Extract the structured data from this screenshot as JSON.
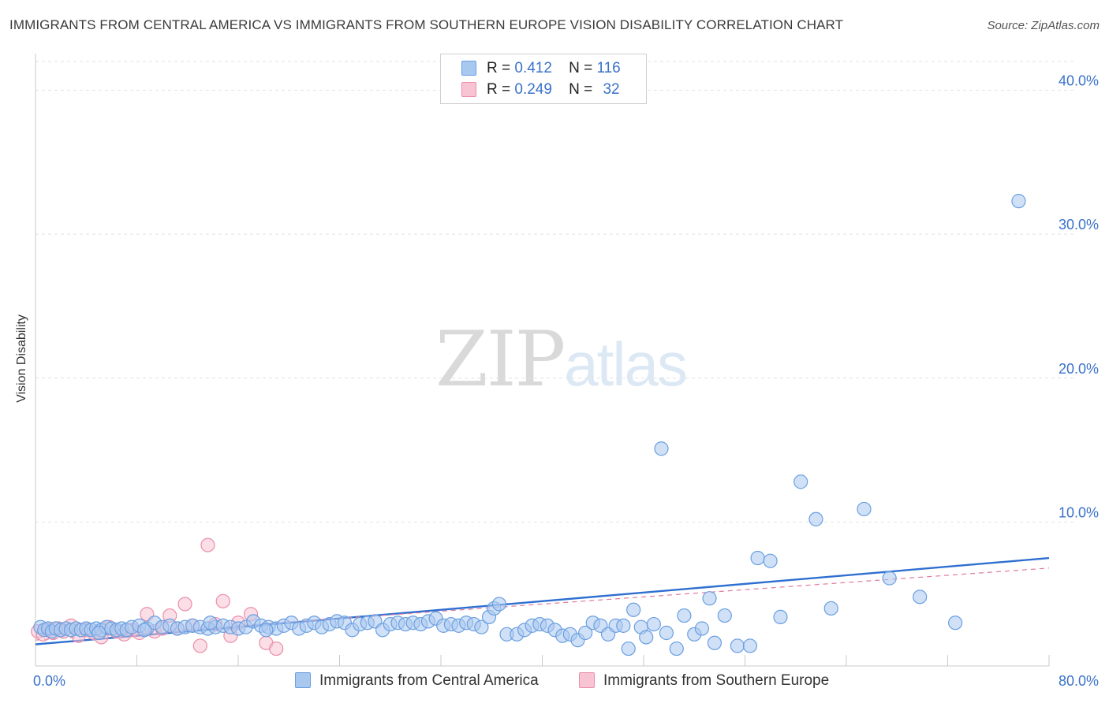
{
  "title": "IMMIGRANTS FROM CENTRAL AMERICA VS IMMIGRANTS FROM SOUTHERN EUROPE VISION DISABILITY CORRELATION CHART",
  "source": "Source: ZipAtlas.com",
  "watermark": {
    "zip": "ZIP",
    "atlas": "atlas"
  },
  "legend": {
    "r_label": "R =",
    "n_label": "N =",
    "rows": [
      {
        "r": "0.412",
        "n": "116",
        "color": "#a9c8f0",
        "border": "#6a9fe0"
      },
      {
        "r": "0.249",
        "n": "32",
        "color": "#f8c3d2",
        "border": "#ea8fab"
      }
    ]
  },
  "series_names": [
    "Immigrants from Central America",
    "Immigrants from Southern Europe"
  ],
  "chart_data": {
    "type": "scatter",
    "title": "IMMIGRANTS FROM CENTRAL AMERICA VS IMMIGRANTS FROM SOUTHERN EUROPE VISION DISABILITY CORRELATION CHART",
    "xlabel": "",
    "ylabel": "Vision Disability",
    "xlim": [
      0,
      80
    ],
    "ylim": [
      0,
      42
    ],
    "x_tick_labels": [
      "0.0%",
      "80.0%"
    ],
    "y_ticks": [
      10,
      20,
      30,
      40
    ],
    "y_tick_labels": [
      "10.0%",
      "20.0%",
      "30.0%",
      "40.0%"
    ],
    "grid": true,
    "series": [
      {
        "name": "Immigrants from Central America",
        "color": "#a9c8f0",
        "stroke": "#6a9fe0",
        "r": 0.412,
        "n": 116,
        "trend": {
          "x": [
            0,
            80
          ],
          "y": [
            1.5,
            7.5
          ],
          "color": "#2f6fd0"
        },
        "points": [
          [
            0.4,
            2.7
          ],
          [
            0.7,
            2.5
          ],
          [
            1,
            2.6
          ],
          [
            1.3,
            2.4
          ],
          [
            1.6,
            2.6
          ],
          [
            2,
            2.5
          ],
          [
            2.4,
            2.6
          ],
          [
            2.8,
            2.5
          ],
          [
            3.2,
            2.6
          ],
          [
            3.6,
            2.5
          ],
          [
            4,
            2.6
          ],
          [
            4.4,
            2.5
          ],
          [
            4.8,
            2.6
          ],
          [
            5.2,
            2.5
          ],
          [
            5.6,
            2.7
          ],
          [
            6,
            2.6
          ],
          [
            6.4,
            2.5
          ],
          [
            6.8,
            2.6
          ],
          [
            7.2,
            2.5
          ],
          [
            7.6,
            2.7
          ],
          [
            8.2,
            2.8
          ],
          [
            8.8,
            2.6
          ],
          [
            9.4,
            3.0
          ],
          [
            10,
            2.7
          ],
          [
            10.6,
            2.8
          ],
          [
            11.2,
            2.6
          ],
          [
            11.8,
            2.7
          ],
          [
            12.4,
            2.8
          ],
          [
            13,
            2.7
          ],
          [
            13.6,
            2.6
          ],
          [
            14.2,
            2.7
          ],
          [
            14.8,
            2.8
          ],
          [
            15.4,
            2.7
          ],
          [
            16,
            2.6
          ],
          [
            16.6,
            2.7
          ],
          [
            17.2,
            3.1
          ],
          [
            17.8,
            2.8
          ],
          [
            18.4,
            2.7
          ],
          [
            19,
            2.6
          ],
          [
            19.6,
            2.8
          ],
          [
            20.2,
            3.0
          ],
          [
            20.8,
            2.6
          ],
          [
            21.4,
            2.8
          ],
          [
            22,
            3.0
          ],
          [
            22.6,
            2.7
          ],
          [
            23.2,
            2.9
          ],
          [
            23.8,
            3.1
          ],
          [
            24.4,
            3.0
          ],
          [
            25,
            2.5
          ],
          [
            25.6,
            2.9
          ],
          [
            26.2,
            3.0
          ],
          [
            26.8,
            3.1
          ],
          [
            27.4,
            2.5
          ],
          [
            28,
            2.9
          ],
          [
            28.6,
            3.0
          ],
          [
            29.2,
            2.9
          ],
          [
            29.8,
            3.0
          ],
          [
            30.4,
            2.9
          ],
          [
            31,
            3.1
          ],
          [
            31.6,
            3.3
          ],
          [
            32.2,
            2.8
          ],
          [
            32.8,
            2.9
          ],
          [
            33.4,
            2.8
          ],
          [
            34,
            3.0
          ],
          [
            34.6,
            2.9
          ],
          [
            35.2,
            2.7
          ],
          [
            35.8,
            3.4
          ],
          [
            36.2,
            4.0
          ],
          [
            36.6,
            4.3
          ],
          [
            37.2,
            2.2
          ],
          [
            38,
            2.2
          ],
          [
            38.6,
            2.5
          ],
          [
            39.2,
            2.8
          ],
          [
            39.8,
            2.9
          ],
          [
            40.4,
            2.8
          ],
          [
            41,
            2.5
          ],
          [
            41.6,
            2.1
          ],
          [
            42.2,
            2.2
          ],
          [
            42.8,
            1.8
          ],
          [
            43.4,
            2.3
          ],
          [
            44,
            3.0
          ],
          [
            44.6,
            2.8
          ],
          [
            45.2,
            2.2
          ],
          [
            45.8,
            2.8
          ],
          [
            46.4,
            2.8
          ],
          [
            46.8,
            1.2
          ],
          [
            47.2,
            3.9
          ],
          [
            47.8,
            2.7
          ],
          [
            48.2,
            2.0
          ],
          [
            48.8,
            2.9
          ],
          [
            49.8,
            2.3
          ],
          [
            50.6,
            1.2
          ],
          [
            51.2,
            3.5
          ],
          [
            52,
            2.2
          ],
          [
            52.6,
            2.6
          ],
          [
            53.2,
            4.7
          ],
          [
            53.6,
            1.6
          ],
          [
            54.4,
            3.5
          ],
          [
            55.4,
            1.4
          ],
          [
            56.4,
            1.4
          ],
          [
            57,
            7.5
          ],
          [
            58,
            7.3
          ],
          [
            58.8,
            3.4
          ],
          [
            60.4,
            12.8
          ],
          [
            61.6,
            10.2
          ],
          [
            62.8,
            4.0
          ],
          [
            65.4,
            10.9
          ],
          [
            67.4,
            6.1
          ],
          [
            72.6,
            3.0
          ],
          [
            77.6,
            32.3
          ],
          [
            49.4,
            15.1
          ],
          [
            69.8,
            4.8
          ],
          [
            18.2,
            2.5
          ],
          [
            13.8,
            3.0
          ],
          [
            8.6,
            2.5
          ],
          [
            5.0,
            2.3
          ]
        ]
      },
      {
        "name": "Immigrants from Southern Europe",
        "color": "#f8c3d2",
        "stroke": "#ea8fab",
        "r": 0.249,
        "n": 32,
        "trend": {
          "x": [
            0,
            80
          ],
          "y": [
            1.8,
            6.8
          ],
          "color": "#e07a9a",
          "dashed": true
        },
        "points": [
          [
            0.2,
            2.4
          ],
          [
            0.6,
            2.2
          ],
          [
            1,
            2.5
          ],
          [
            1.4,
            2.3
          ],
          [
            1.8,
            2.6
          ],
          [
            2.2,
            2.4
          ],
          [
            2.8,
            2.8
          ],
          [
            3.4,
            2.1
          ],
          [
            4,
            2.5
          ],
          [
            4.6,
            2.3
          ],
          [
            5.2,
            2.0
          ],
          [
            5.8,
            2.7
          ],
          [
            6.4,
            2.4
          ],
          [
            7,
            2.2
          ],
          [
            7.6,
            2.5
          ],
          [
            8.2,
            2.3
          ],
          [
            8.8,
            3.6
          ],
          [
            9.4,
            2.4
          ],
          [
            10,
            2.6
          ],
          [
            10.6,
            3.5
          ],
          [
            11.2,
            2.6
          ],
          [
            11.8,
            4.3
          ],
          [
            12.4,
            2.8
          ],
          [
            13,
            1.4
          ],
          [
            13.6,
            8.4
          ],
          [
            14.2,
            2.9
          ],
          [
            14.8,
            4.5
          ],
          [
            15.4,
            2.1
          ],
          [
            16,
            3.0
          ],
          [
            17,
            3.6
          ],
          [
            18.2,
            1.6
          ],
          [
            19,
            1.2
          ]
        ]
      }
    ]
  }
}
